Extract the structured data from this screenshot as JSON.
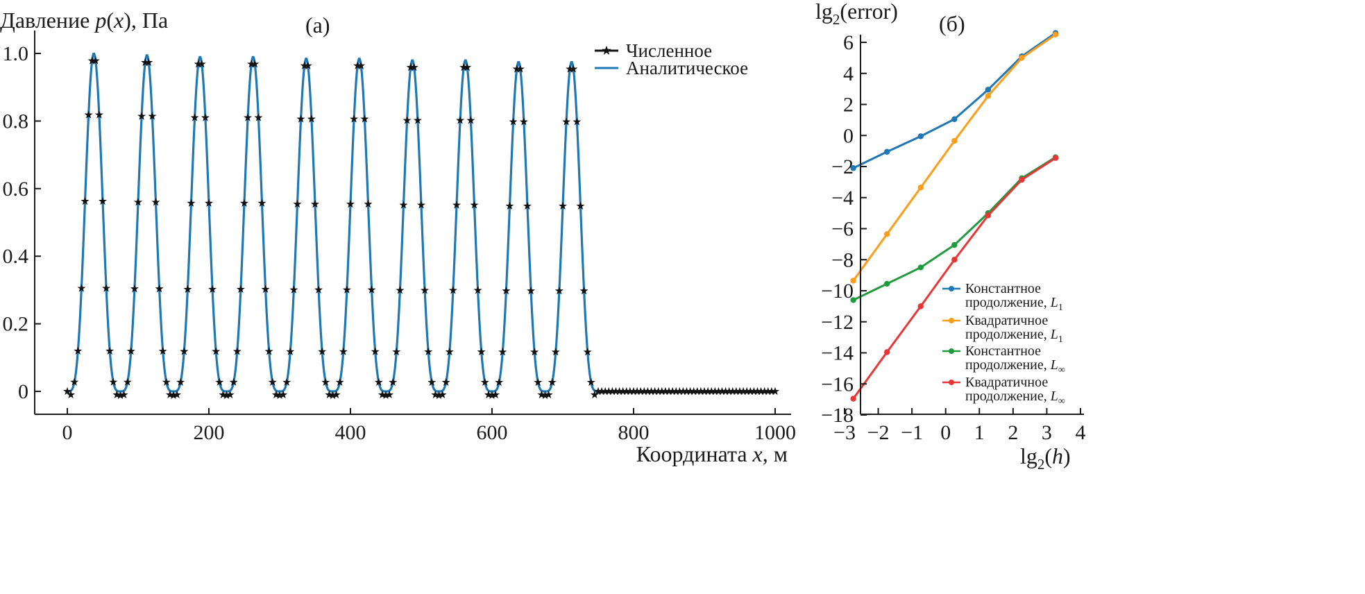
{
  "chart_data": [
    {
      "type": "line",
      "panel_label": "(а)",
      "ylabel": "Давление p(x), Па",
      "ylabel_parts": {
        "prefix": "Давление ",
        "var": "p",
        "open": "(",
        "arg": "x",
        "close": "), Па"
      },
      "xlabel": "Координата x, м",
      "xlabel_parts": {
        "prefix": "Координата ",
        "var": "x",
        "suffix": ", м"
      },
      "xlim": [
        -10,
        1020
      ],
      "ylim": [
        -0.07,
        1.05
      ],
      "xticks": [
        0,
        200,
        400,
        600,
        800,
        1000
      ],
      "xtick_labels": [
        "0",
        "200",
        "400",
        "600",
        "800",
        "1000"
      ],
      "yticks": [
        0,
        0.2,
        0.4,
        0.6,
        0.8,
        1.0
      ],
      "ytick_labels": [
        "0",
        "0.2",
        "0.4",
        "0.6",
        "0.8",
        "1.0"
      ],
      "pulse_centers": [
        37.5,
        112.5,
        187.5,
        262.5,
        337.5,
        412.5,
        487.5,
        562.5,
        637.5,
        712.5
      ],
      "pulse_peaks": [
        1.0,
        0.995,
        0.99,
        0.99,
        0.985,
        0.985,
        0.98,
        0.98,
        0.975,
        0.975
      ],
      "signal_end": 750,
      "numeric_step": 5,
      "series": [
        {
          "name": "Численное",
          "color": "#111111",
          "marker": "star"
        },
        {
          "name": "Аналитическое",
          "color": "#1f77b4"
        }
      ],
      "legend_position": "top-right"
    },
    {
      "type": "line",
      "panel_label": "(б)",
      "ylabel": "lg2(error)",
      "ylabel_parts": {
        "prefix": "lg",
        "sub": "2",
        "suffix": "(error)"
      },
      "xlabel": "lg2(h)",
      "xlabel_parts": {
        "prefix": "lg",
        "sub": "2",
        "open": "(",
        "var": "h",
        "close": ")"
      },
      "xlim": [
        -3,
        4
      ],
      "ylim": [
        -18,
        7
      ],
      "xticks": [
        -3,
        -2,
        -1,
        0,
        1,
        2,
        3,
        4
      ],
      "xtick_labels": [
        "−3",
        "−2",
        "−1",
        "0",
        "1",
        "2",
        "3",
        "4"
      ],
      "yticks": [
        6,
        4,
        2,
        0,
        -2,
        -4,
        -6,
        -8,
        -10,
        -12,
        -14,
        -16,
        -18
      ],
      "ytick_labels": [
        "6",
        "4",
        "2",
        "0",
        "−2",
        "−4",
        "−6",
        "−8",
        "−10",
        "−12",
        "−14",
        "−16",
        "−18"
      ],
      "x": [
        -2.74,
        -1.74,
        -0.74,
        0.26,
        1.26,
        2.26,
        3.26
      ],
      "series": [
        {
          "name": "Константное продолжение, L1",
          "line1": "Константное",
          "line2": "продолжение, ",
          "norm": "L",
          "norm_sub": "1",
          "color": "#1f77b4",
          "values": [
            -2.1,
            -1.05,
            -0.05,
            1.05,
            2.95,
            5.1,
            6.6
          ]
        },
        {
          "name": "Квадратичное продолжение, L1",
          "line1": "Квадратичное",
          "line2": "продолжение, ",
          "norm": "L",
          "norm_sub": "1",
          "color": "#ff9c1a",
          "values": [
            -9.35,
            -6.35,
            -3.35,
            -0.35,
            2.55,
            5.0,
            6.5
          ]
        },
        {
          "name": "Константное продолжение, L∞",
          "line1": "Константное",
          "line2": "продолжение, ",
          "norm": "L",
          "norm_sub": "∞",
          "color": "#1f9a3c",
          "values": [
            -10.6,
            -9.55,
            -8.5,
            -7.05,
            -5.0,
            -2.75,
            -1.4
          ]
        },
        {
          "name": "Квадратичное продолжение, L∞",
          "line1": "Квадратичное",
          "line2": "продолжение, ",
          "norm": "L",
          "norm_sub": "∞",
          "color": "#e83535",
          "values": [
            -16.95,
            -13.95,
            -11.0,
            -8.0,
            -5.15,
            -2.85,
            -1.45
          ]
        }
      ],
      "legend_position": "bottom-right"
    }
  ]
}
